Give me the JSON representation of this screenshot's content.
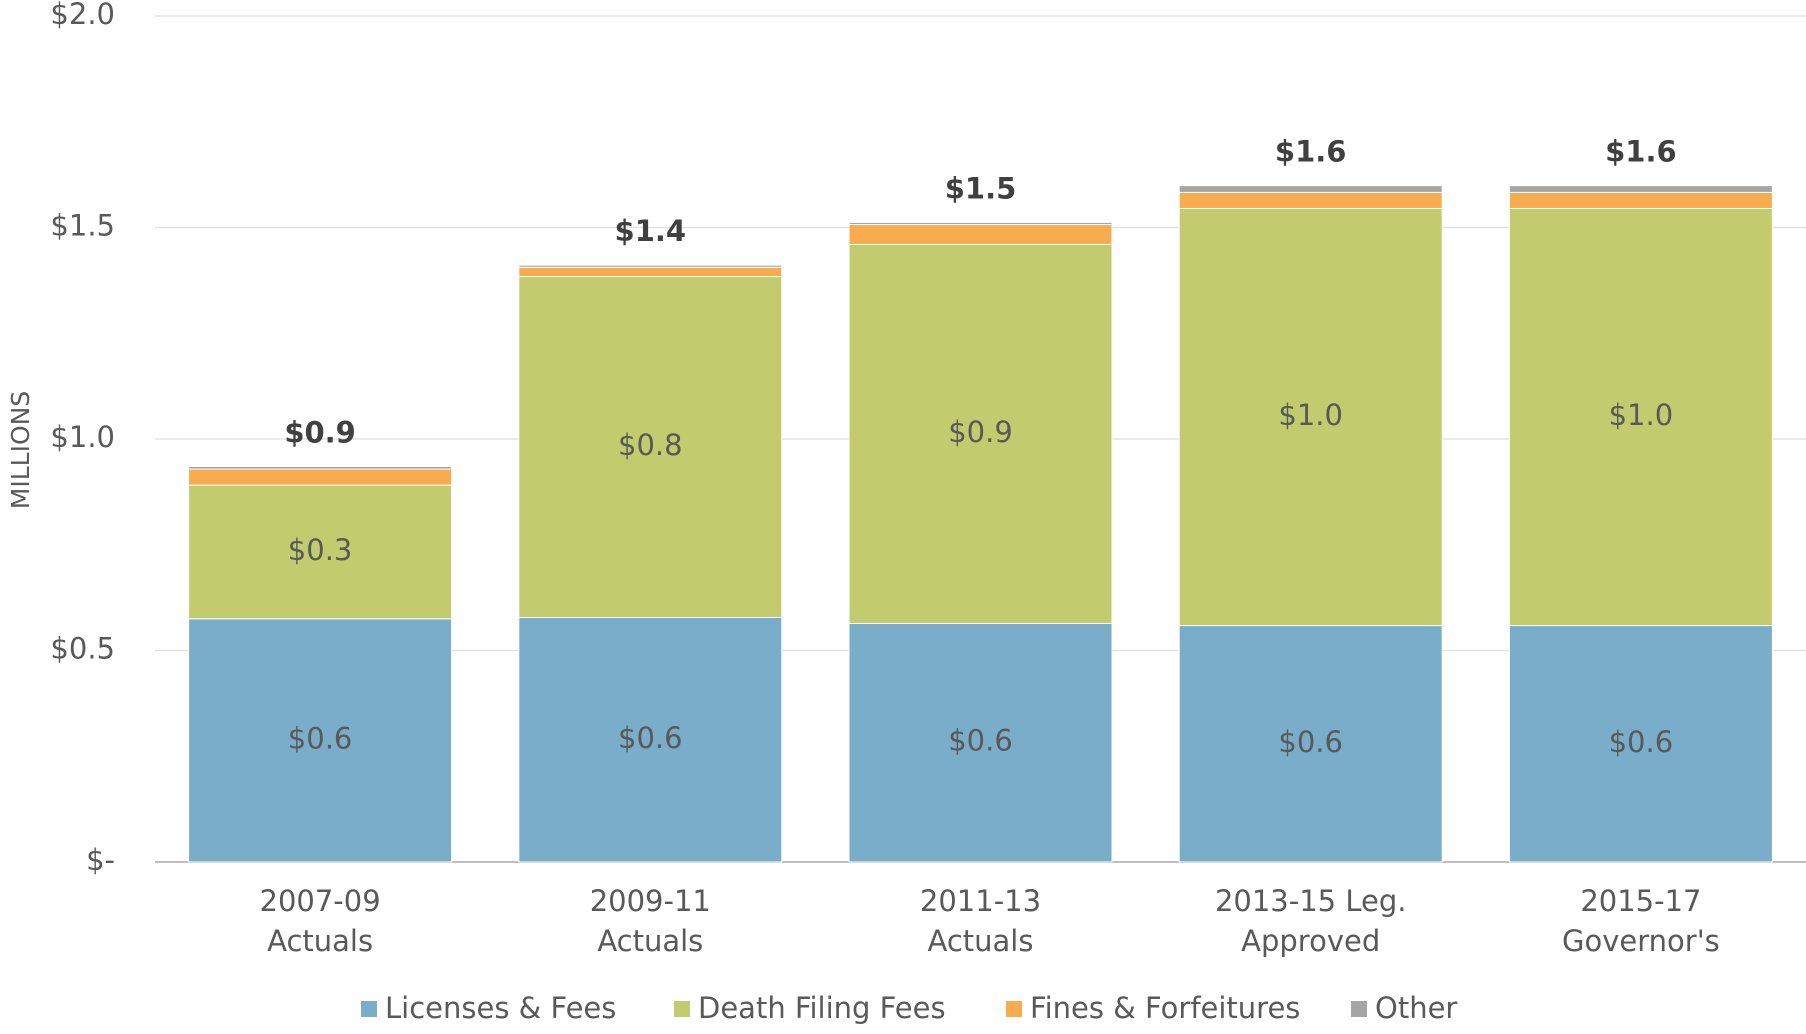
{
  "chart_data": {
    "type": "stacked_bar",
    "y_label": "MILLIONS",
    "categories": [
      [
        "2007-09",
        "Actuals"
      ],
      [
        "2009-11",
        "Actuals"
      ],
      [
        "2011-13",
        "Actuals"
      ],
      [
        "2013-15 Leg.",
        "Approved"
      ],
      [
        "2015-17",
        "Governor's"
      ]
    ],
    "series": [
      {
        "name": "Licenses & Fees",
        "color": "#7aadca",
        "values": [
          0.575,
          0.578,
          0.564,
          0.559,
          0.559
        ],
        "value_labels": [
          "$0.6",
          "$0.6",
          "$0.6",
          "$0.6",
          "$0.6"
        ]
      },
      {
        "name": "Death Filing Fees",
        "color": "#c2cc6e",
        "values": [
          0.316,
          0.806,
          0.896,
          0.986,
          0.986
        ],
        "value_labels": [
          "$0.3",
          "$0.8",
          "$0.9",
          "$1.0",
          "$1.0"
        ]
      },
      {
        "name": "Fines & Forfeitures",
        "color": "#f7ac4f",
        "values": [
          0.038,
          0.022,
          0.047,
          0.038,
          0.038
        ]
      },
      {
        "name": "Other",
        "color": "#a5a5a5",
        "values": [
          0.006,
          0.005,
          0.005,
          0.016,
          0.016
        ]
      }
    ],
    "total_labels": [
      "$0.9",
      "$1.4",
      "$1.5",
      "$1.6",
      "$1.6"
    ],
    "ylim": [
      0,
      2.0
    ],
    "yticks": [
      {
        "value": 0,
        "label": "$-"
      },
      {
        "value": 0.5,
        "label": "$0.5"
      },
      {
        "value": 1.0,
        "label": "$1.0"
      },
      {
        "value": 1.5,
        "label": "$1.5"
      },
      {
        "value": 2.0,
        "label": "$2.0"
      }
    ],
    "grid": true
  }
}
